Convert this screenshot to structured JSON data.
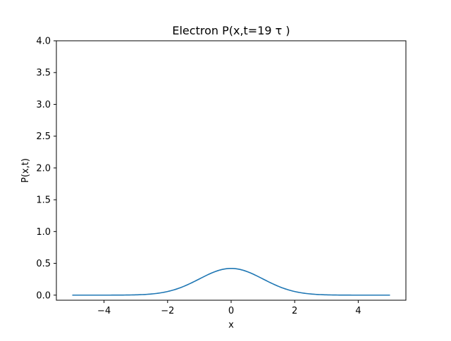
{
  "chart_data": {
    "type": "line",
    "title": "Electron P(x,t=19 τ )",
    "xlabel": "x",
    "ylabel": "P(x,t)",
    "xlim": [
      -5.5,
      5.5
    ],
    "ylim": [
      -0.08,
      4.0
    ],
    "xticks": [
      -4,
      -2,
      0,
      2,
      4
    ],
    "xtick_labels": [
      "−4",
      "−2",
      "0",
      "2",
      "4"
    ],
    "yticks": [
      0.0,
      0.5,
      1.0,
      1.5,
      2.0,
      2.5,
      3.0,
      3.5,
      4.0
    ],
    "ytick_labels": [
      "0.0",
      "0.5",
      "1.0",
      "1.5",
      "2.0",
      "2.5",
      "3.0",
      "3.5",
      "4.0"
    ],
    "grid": false,
    "series": [
      {
        "color": "#1f77b4",
        "x": [
          -5.0,
          -4.5,
          -4.0,
          -3.5,
          -3.0,
          -2.5,
          -2.0,
          -1.5,
          -1.0,
          -0.5,
          0.0,
          0.5,
          1.0,
          1.5,
          2.0,
          2.5,
          3.0,
          3.5,
          4.0,
          4.5,
          5.0
        ],
        "y": [
          0.0,
          0.0,
          0.0,
          0.002,
          0.008,
          0.022,
          0.052,
          0.11,
          0.2,
          0.32,
          0.42,
          0.32,
          0.2,
          0.11,
          0.052,
          0.022,
          0.008,
          0.002,
          0.0,
          0.0,
          0.0
        ]
      }
    ]
  }
}
